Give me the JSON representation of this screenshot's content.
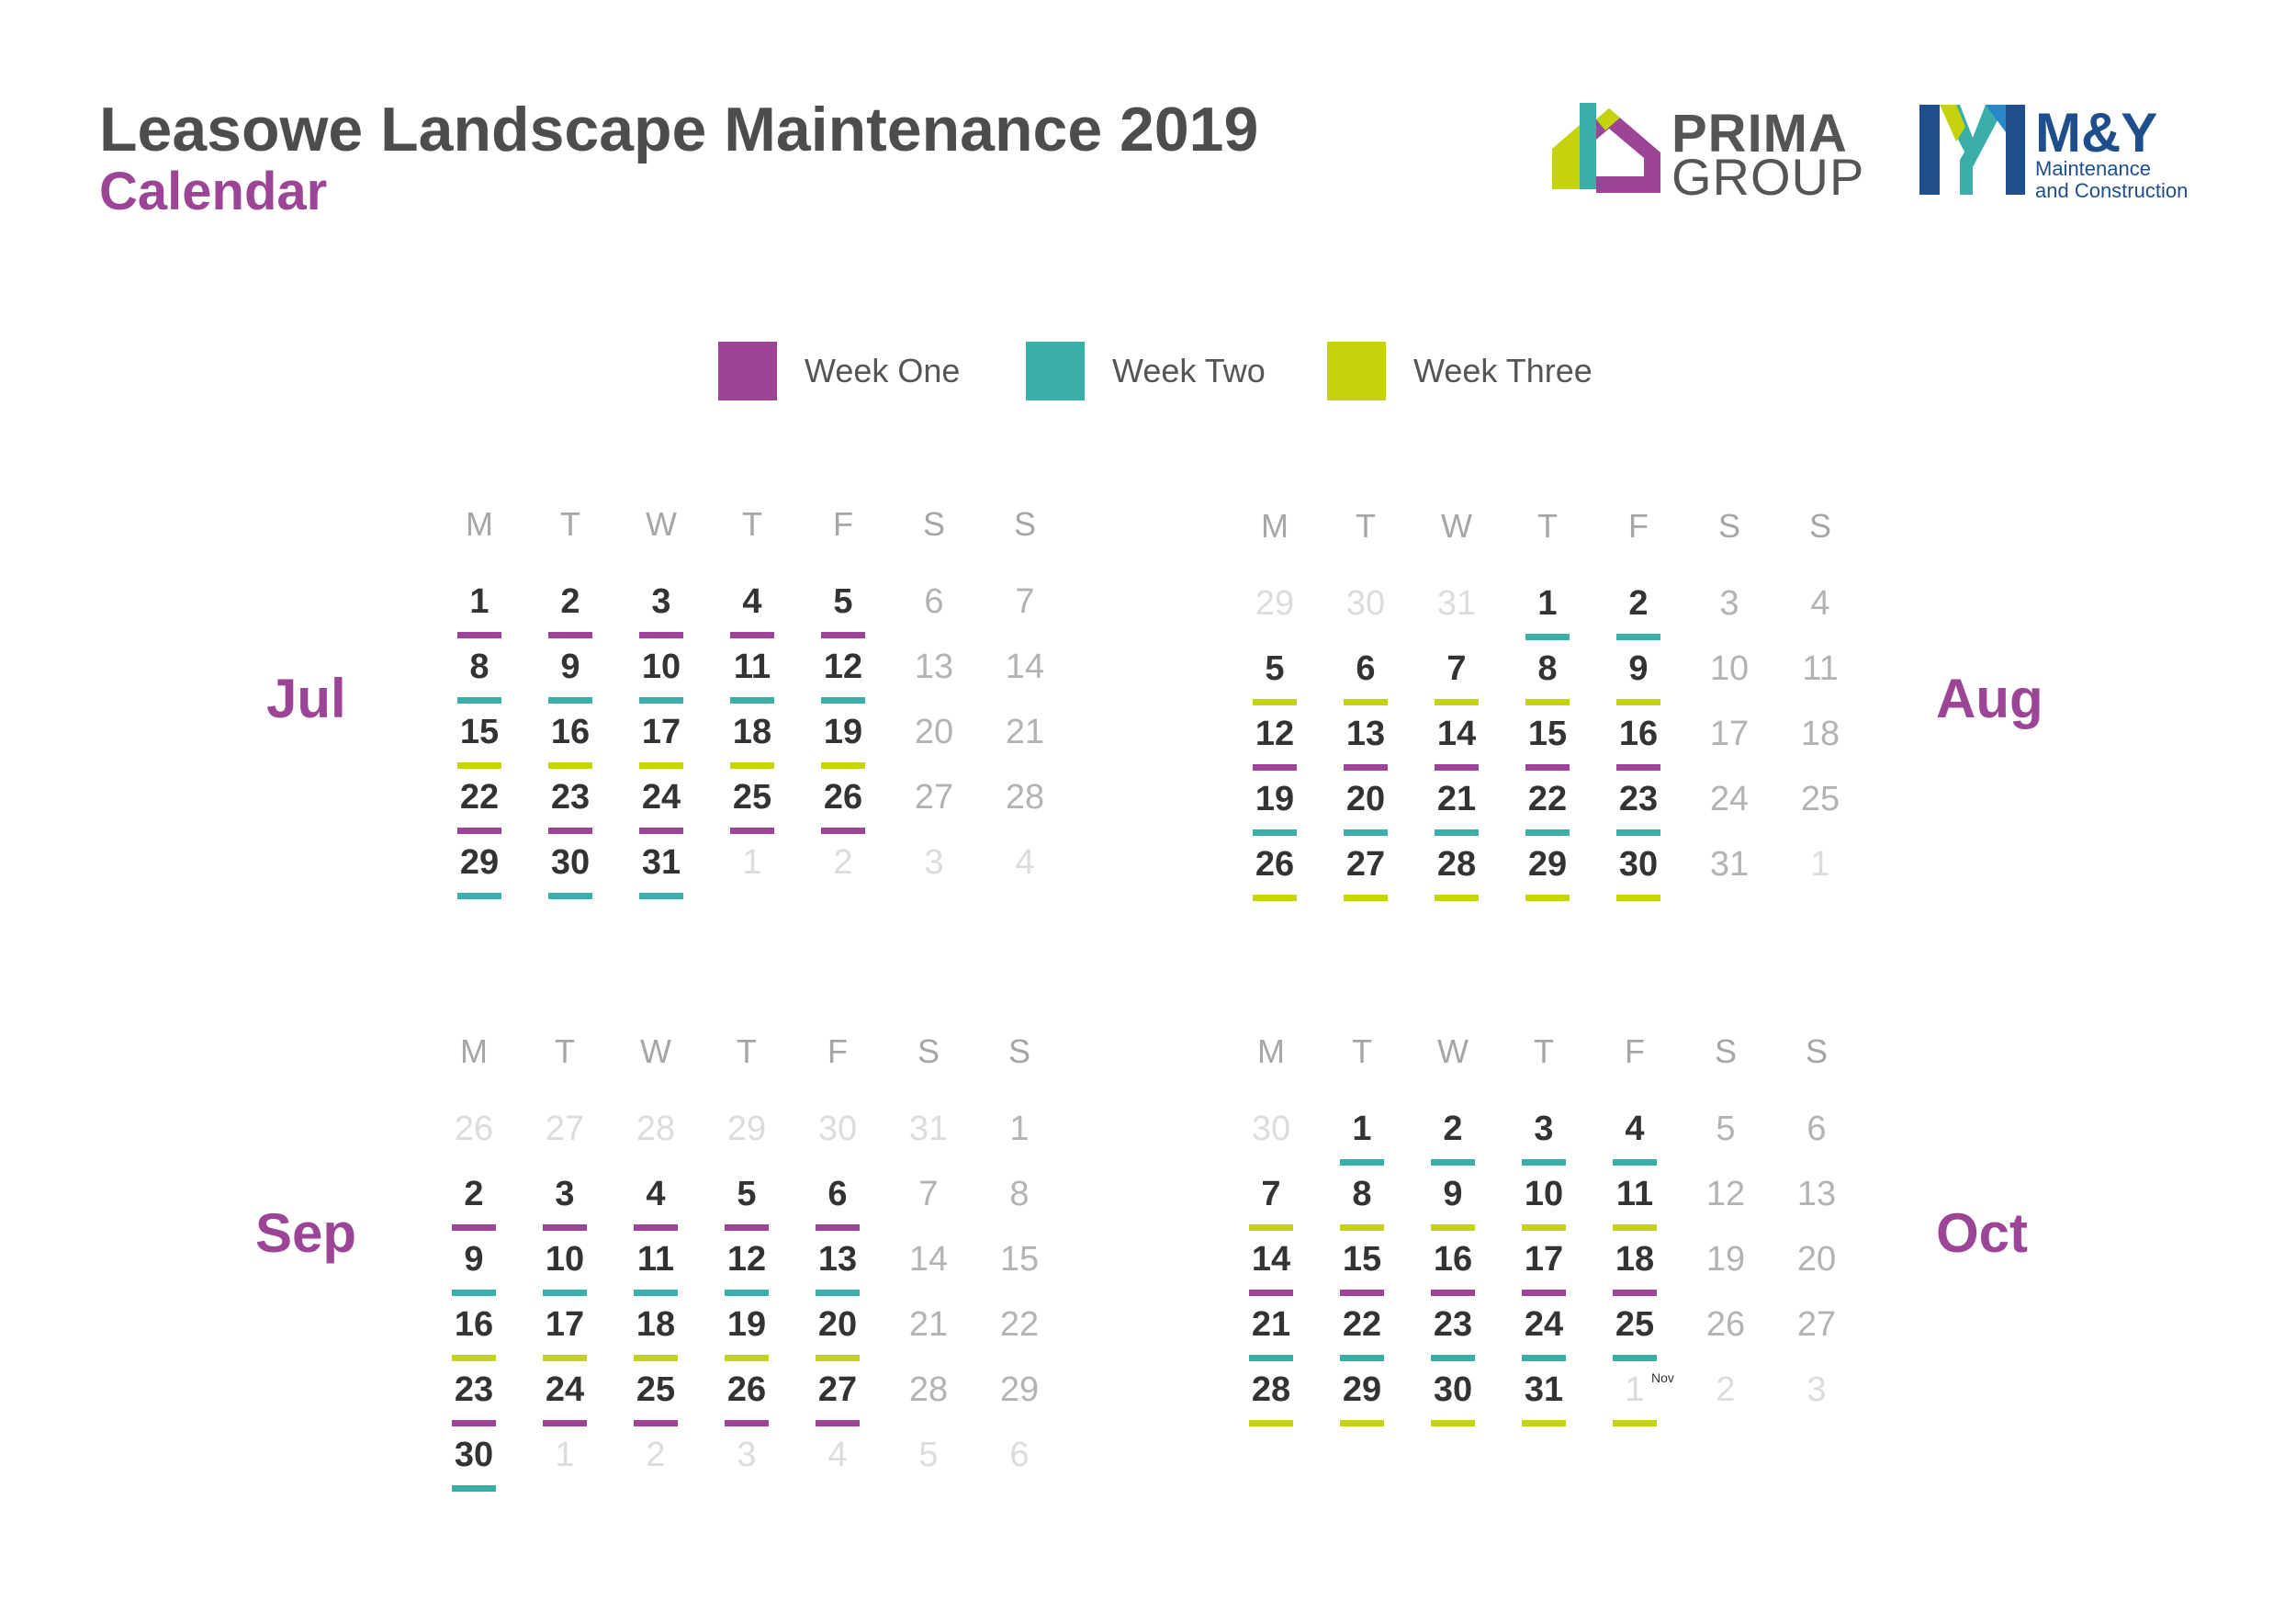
{
  "header": {
    "title": "Leasowe Landscape Maintenance 2019",
    "subtitle": "Calendar"
  },
  "logos": {
    "prima": {
      "line1": "PRIMA",
      "line2": "GROUP"
    },
    "my": {
      "line1": "M&Y",
      "line2": "Maintenance",
      "line3": "and Construction"
    }
  },
  "colors": {
    "w1": "#9c4596",
    "w2": "#3aaea9",
    "w3": "#c4d30e"
  },
  "legend": [
    {
      "label": "Week One",
      "week": "w1"
    },
    {
      "label": "Week Two",
      "week": "w2"
    },
    {
      "label": "Week Three",
      "week": "w3"
    }
  ],
  "weekdays": [
    "M",
    "T",
    "W",
    "T",
    "F",
    "S",
    "S"
  ],
  "months": [
    {
      "name": "Jul",
      "weeks": [
        [
          {
            "d": "1",
            "w": "w1"
          },
          {
            "d": "2",
            "w": "w1"
          },
          {
            "d": "3",
            "w": "w1"
          },
          {
            "d": "4",
            "w": "w1"
          },
          {
            "d": "5",
            "w": "w1"
          },
          {
            "d": "6",
            "t": "we"
          },
          {
            "d": "7",
            "t": "we"
          }
        ],
        [
          {
            "d": "8",
            "w": "w2"
          },
          {
            "d": "9",
            "w": "w2"
          },
          {
            "d": "10",
            "w": "w2"
          },
          {
            "d": "11",
            "w": "w2"
          },
          {
            "d": "12",
            "w": "w2"
          },
          {
            "d": "13",
            "t": "we"
          },
          {
            "d": "14",
            "t": "we"
          }
        ],
        [
          {
            "d": "15",
            "w": "w3"
          },
          {
            "d": "16",
            "w": "w3"
          },
          {
            "d": "17",
            "w": "w3"
          },
          {
            "d": "18",
            "w": "w3"
          },
          {
            "d": "19",
            "w": "w3"
          },
          {
            "d": "20",
            "t": "we"
          },
          {
            "d": "21",
            "t": "we"
          }
        ],
        [
          {
            "d": "22",
            "w": "w1"
          },
          {
            "d": "23",
            "w": "w1"
          },
          {
            "d": "24",
            "w": "w1"
          },
          {
            "d": "25",
            "w": "w1"
          },
          {
            "d": "26",
            "w": "w1"
          },
          {
            "d": "27",
            "t": "we"
          },
          {
            "d": "28",
            "t": "we"
          }
        ],
        [
          {
            "d": "29",
            "w": "w2"
          },
          {
            "d": "30",
            "w": "w2"
          },
          {
            "d": "31",
            "w": "w2"
          },
          {
            "d": "1",
            "t": "o"
          },
          {
            "d": "2",
            "t": "o"
          },
          {
            "d": "3",
            "t": "o"
          },
          {
            "d": "4",
            "t": "o"
          }
        ]
      ]
    },
    {
      "name": "Aug",
      "weeks": [
        [
          {
            "d": "29",
            "t": "o"
          },
          {
            "d": "30",
            "t": "o"
          },
          {
            "d": "31",
            "t": "o"
          },
          {
            "d": "1",
            "w": "w2"
          },
          {
            "d": "2",
            "w": "w2"
          },
          {
            "d": "3",
            "t": "we"
          },
          {
            "d": "4",
            "t": "we"
          }
        ],
        [
          {
            "d": "5",
            "w": "w3"
          },
          {
            "d": "6",
            "w": "w3"
          },
          {
            "d": "7",
            "w": "w3"
          },
          {
            "d": "8",
            "w": "w3"
          },
          {
            "d": "9",
            "w": "w3"
          },
          {
            "d": "10",
            "t": "we"
          },
          {
            "d": "11",
            "t": "we"
          }
        ],
        [
          {
            "d": "12",
            "w": "w1"
          },
          {
            "d": "13",
            "w": "w1"
          },
          {
            "d": "14",
            "w": "w1"
          },
          {
            "d": "15",
            "w": "w1"
          },
          {
            "d": "16",
            "w": "w1"
          },
          {
            "d": "17",
            "t": "we"
          },
          {
            "d": "18",
            "t": "we"
          }
        ],
        [
          {
            "d": "19",
            "w": "w2"
          },
          {
            "d": "20",
            "w": "w2"
          },
          {
            "d": "21",
            "w": "w2"
          },
          {
            "d": "22",
            "w": "w2"
          },
          {
            "d": "23",
            "w": "w2"
          },
          {
            "d": "24",
            "t": "we"
          },
          {
            "d": "25",
            "t": "we"
          }
        ],
        [
          {
            "d": "26",
            "w": "w3"
          },
          {
            "d": "27",
            "w": "w3"
          },
          {
            "d": "28",
            "w": "w3"
          },
          {
            "d": "29",
            "w": "w3"
          },
          {
            "d": "30",
            "w": "w3"
          },
          {
            "d": "31",
            "t": "we"
          },
          {
            "d": "1",
            "t": "o"
          }
        ]
      ]
    },
    {
      "name": "Sep",
      "weeks": [
        [
          {
            "d": "26",
            "t": "o"
          },
          {
            "d": "27",
            "t": "o"
          },
          {
            "d": "28",
            "t": "o"
          },
          {
            "d": "29",
            "t": "o"
          },
          {
            "d": "30",
            "t": "o"
          },
          {
            "d": "31",
            "t": "o"
          },
          {
            "d": "1",
            "t": "we"
          }
        ],
        [
          {
            "d": "2",
            "w": "w1"
          },
          {
            "d": "3",
            "w": "w1"
          },
          {
            "d": "4",
            "w": "w1"
          },
          {
            "d": "5",
            "w": "w1"
          },
          {
            "d": "6",
            "w": "w1"
          },
          {
            "d": "7",
            "t": "we"
          },
          {
            "d": "8",
            "t": "we"
          }
        ],
        [
          {
            "d": "9",
            "w": "w2"
          },
          {
            "d": "10",
            "w": "w2"
          },
          {
            "d": "11",
            "w": "w2"
          },
          {
            "d": "12",
            "w": "w2"
          },
          {
            "d": "13",
            "w": "w2"
          },
          {
            "d": "14",
            "t": "we"
          },
          {
            "d": "15",
            "t": "we"
          }
        ],
        [
          {
            "d": "16",
            "w": "w3"
          },
          {
            "d": "17",
            "w": "w3"
          },
          {
            "d": "18",
            "w": "w3"
          },
          {
            "d": "19",
            "w": "w3"
          },
          {
            "d": "20",
            "w": "w3"
          },
          {
            "d": "21",
            "t": "we"
          },
          {
            "d": "22",
            "t": "we"
          }
        ],
        [
          {
            "d": "23",
            "w": "w1"
          },
          {
            "d": "24",
            "w": "w1"
          },
          {
            "d": "25",
            "w": "w1"
          },
          {
            "d": "26",
            "w": "w1"
          },
          {
            "d": "27",
            "w": "w1"
          },
          {
            "d": "28",
            "t": "we"
          },
          {
            "d": "29",
            "t": "we"
          }
        ],
        [
          {
            "d": "30",
            "w": "w2"
          },
          {
            "d": "1",
            "t": "o"
          },
          {
            "d": "2",
            "t": "o"
          },
          {
            "d": "3",
            "t": "o"
          },
          {
            "d": "4",
            "t": "o"
          },
          {
            "d": "5",
            "t": "o"
          },
          {
            "d": "6",
            "t": "o"
          }
        ]
      ]
    },
    {
      "name": "Oct",
      "weeks": [
        [
          {
            "d": "30",
            "t": "o"
          },
          {
            "d": "1",
            "w": "w2"
          },
          {
            "d": "2",
            "w": "w2"
          },
          {
            "d": "3",
            "w": "w2"
          },
          {
            "d": "4",
            "w": "w2"
          },
          {
            "d": "5",
            "t": "we"
          },
          {
            "d": "6",
            "t": "we"
          }
        ],
        [
          {
            "d": "7",
            "w": "w3"
          },
          {
            "d": "8",
            "w": "w3"
          },
          {
            "d": "9",
            "w": "w3"
          },
          {
            "d": "10",
            "w": "w3"
          },
          {
            "d": "11",
            "w": "w3"
          },
          {
            "d": "12",
            "t": "we"
          },
          {
            "d": "13",
            "t": "we"
          }
        ],
        [
          {
            "d": "14",
            "w": "w1"
          },
          {
            "d": "15",
            "w": "w1"
          },
          {
            "d": "16",
            "w": "w1"
          },
          {
            "d": "17",
            "w": "w1"
          },
          {
            "d": "18",
            "w": "w1"
          },
          {
            "d": "19",
            "t": "we"
          },
          {
            "d": "20",
            "t": "we"
          }
        ],
        [
          {
            "d": "21",
            "w": "w2"
          },
          {
            "d": "22",
            "w": "w2"
          },
          {
            "d": "23",
            "w": "w2"
          },
          {
            "d": "24",
            "w": "w2"
          },
          {
            "d": "25",
            "w": "w2"
          },
          {
            "d": "26",
            "t": "we"
          },
          {
            "d": "27",
            "t": "we"
          }
        ],
        [
          {
            "d": "28",
            "w": "w3"
          },
          {
            "d": "29",
            "w": "w3"
          },
          {
            "d": "30",
            "w": "w3"
          },
          {
            "d": "31",
            "w": "w3"
          },
          {
            "d": "1",
            "t": "o",
            "w": "w3",
            "note": "Nov"
          },
          {
            "d": "2",
            "t": "o"
          },
          {
            "d": "3",
            "t": "o"
          }
        ]
      ]
    }
  ]
}
